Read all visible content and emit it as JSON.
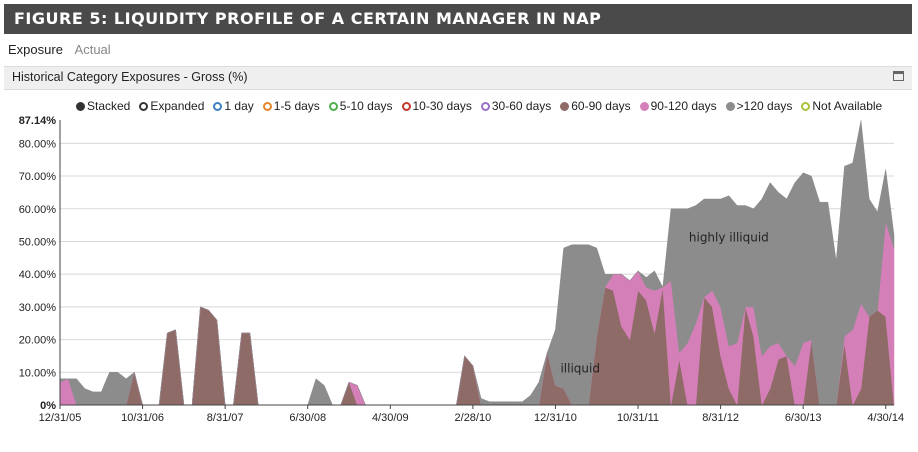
{
  "banner": {
    "title": "FIGURE 5: LIQUIDITY PROFILE OF A CERTAIN MANAGER IN NAP"
  },
  "tabs": [
    {
      "label": "Exposure"
    },
    {
      "label": "Actual"
    }
  ],
  "panel": {
    "title": "Historical Category Exposures - Gross (%)"
  },
  "colors": {
    "illiquid": "#8e6b66",
    "mid": "#d57fb9",
    "high": "#8c8c8c",
    "grid": "#d8d8d8"
  },
  "legend": [
    {
      "label": "Stacked",
      "color": "#333333",
      "filled": true
    },
    {
      "label": "Expanded",
      "color": "#333333",
      "filled": false
    },
    {
      "label": "1 day",
      "color": "#3b7fc4",
      "filled": false
    },
    {
      "label": "1-5 days",
      "color": "#e8832a",
      "filled": false
    },
    {
      "label": "5-10 days",
      "color": "#4caf50",
      "filled": false
    },
    {
      "label": "10-30 days",
      "color": "#c0392b",
      "filled": false
    },
    {
      "label": "30-60 days",
      "color": "#9b6fc7",
      "filled": false
    },
    {
      "label": "60-90 days",
      "color": "#8e6b66",
      "filled": true
    },
    {
      "label": "90-120 days",
      "color": "#d57fb9",
      "filled": true
    },
    {
      "label": ">120 days",
      "color": "#8c8c8c",
      "filled": true
    },
    {
      "label": "Not Available",
      "color": "#a8c23a",
      "filled": false
    }
  ],
  "chart_data": {
    "type": "area",
    "stacked": true,
    "title": "Historical Category Exposures - Gross (%)",
    "ylim": [
      0,
      87.14
    ],
    "y_ticks": [
      "0%",
      "10.00%",
      "20.00%",
      "30.00%",
      "40.00%",
      "50.00%",
      "60.00%",
      "70.00%",
      "80.00%",
      "87.14%"
    ],
    "x_ticks": [
      "12/31/05",
      "10/31/06",
      "8/31/07",
      "6/30/08",
      "4/30/09",
      "2/28/10",
      "12/31/10",
      "10/31/11",
      "8/31/12",
      "6/30/13",
      "4/30/14"
    ],
    "x": [
      "2005-12",
      "2006-01",
      "2006-02",
      "2006-03",
      "2006-04",
      "2006-05",
      "2006-06",
      "2006-07",
      "2006-08",
      "2006-09",
      "2006-10",
      "2006-11",
      "2006-12",
      "2007-01",
      "2007-02",
      "2007-03",
      "2007-04",
      "2007-05",
      "2007-06",
      "2007-07",
      "2007-08",
      "2007-09",
      "2007-10",
      "2007-11",
      "2007-12",
      "2008-01",
      "2008-02",
      "2008-03",
      "2008-04",
      "2008-05",
      "2008-06",
      "2008-07",
      "2008-08",
      "2008-09",
      "2008-10",
      "2008-11",
      "2008-12",
      "2009-01",
      "2009-02",
      "2009-03",
      "2009-04",
      "2009-05",
      "2009-06",
      "2009-07",
      "2009-08",
      "2009-09",
      "2009-10",
      "2009-11",
      "2009-12",
      "2010-01",
      "2010-02",
      "2010-03",
      "2010-04",
      "2010-05",
      "2010-06",
      "2010-07",
      "2010-08",
      "2010-09",
      "2010-10",
      "2010-11",
      "2010-12",
      "2011-01",
      "2011-02",
      "2011-03",
      "2011-04",
      "2011-05",
      "2011-06",
      "2011-07",
      "2011-08",
      "2011-09",
      "2011-10",
      "2011-11",
      "2011-12",
      "2012-01",
      "2012-02",
      "2012-03",
      "2012-04",
      "2012-05",
      "2012-06",
      "2012-07",
      "2012-08",
      "2012-09",
      "2012-10",
      "2012-11",
      "2012-12",
      "2013-01",
      "2013-02",
      "2013-03",
      "2013-04",
      "2013-05",
      "2013-06",
      "2013-07",
      "2013-08",
      "2013-09",
      "2013-10",
      "2013-11",
      "2013-12",
      "2014-01",
      "2014-02",
      "2014-03",
      "2014-04",
      "2014-05"
    ],
    "series": [
      {
        "name": "60-90 days",
        "color": "#8e6b66",
        "values": [
          0,
          0,
          0,
          0,
          0,
          0,
          0,
          0,
          0,
          10,
          0,
          0,
          0,
          22,
          23,
          0,
          0,
          30,
          29,
          26,
          0,
          0,
          22,
          22,
          0,
          0,
          0,
          0,
          0,
          0,
          0,
          0,
          0,
          0,
          0,
          7,
          0,
          0,
          0,
          0,
          0,
          0,
          0,
          0,
          0,
          0,
          0,
          0,
          0,
          15,
          12,
          0,
          0,
          0,
          0,
          0,
          0,
          0,
          0,
          16,
          6,
          5,
          0,
          0,
          0,
          21,
          36,
          35,
          24,
          20,
          35,
          32,
          22,
          36,
          0,
          14,
          0,
          0,
          33,
          30,
          15,
          5,
          0,
          30,
          21,
          0,
          5,
          14,
          15,
          0,
          0,
          20,
          0,
          0,
          0,
          19,
          0,
          5,
          27,
          29,
          27,
          0
        ]
      },
      {
        "name": "90-120 days",
        "color": "#d57fb9",
        "values": [
          7,
          8,
          0,
          0,
          0,
          0,
          0,
          0,
          0,
          0,
          0,
          0,
          0,
          0,
          0,
          0,
          0,
          0,
          0,
          0,
          0,
          0,
          0,
          0,
          0,
          0,
          0,
          0,
          0,
          0,
          0,
          0,
          0,
          0,
          0,
          0,
          6,
          0,
          0,
          0,
          0,
          0,
          0,
          0,
          0,
          0,
          0,
          0,
          0,
          0,
          0,
          0,
          0,
          0,
          0,
          0,
          0,
          0,
          0,
          0,
          0,
          0,
          0,
          0,
          0,
          0,
          0,
          5,
          16,
          18,
          6,
          4,
          13,
          0,
          38,
          2,
          19,
          25,
          0,
          5,
          15,
          13,
          19,
          0,
          9,
          15,
          13,
          5,
          0,
          12,
          19,
          0,
          0,
          0,
          0,
          2,
          23,
          26,
          0,
          0,
          29,
          48
        ]
      },
      {
        "name": ">120 days",
        "color": "#8c8c8c",
        "values": [
          1,
          0,
          8,
          5,
          4,
          4,
          10,
          10,
          8,
          0,
          0,
          0,
          0,
          0,
          0,
          0,
          0,
          0,
          0,
          0,
          0,
          0,
          0,
          0,
          0,
          0,
          0,
          0,
          0,
          0,
          0,
          8,
          6,
          0,
          0,
          0,
          0,
          0,
          0,
          0,
          0,
          0,
          0,
          0,
          0,
          0,
          0,
          0,
          0,
          0,
          0,
          2,
          1,
          1,
          1,
          1,
          1,
          3,
          7,
          0,
          17,
          43,
          49,
          49,
          49,
          27,
          4,
          0,
          0,
          0,
          0,
          3,
          6,
          0,
          22,
          44,
          41,
          36,
          30,
          28,
          33,
          46,
          42,
          31,
          30,
          48,
          50,
          46,
          48,
          56,
          52,
          50,
          62,
          62,
          44,
          52,
          51,
          56,
          36,
          30,
          16,
          4
        ]
      }
    ],
    "annotations": [
      {
        "text": "highly illiquid",
        "x": "2012-09",
        "y": 50
      },
      {
        "text": "illiquid",
        "x": "2011-03",
        "y": 10
      }
    ]
  }
}
